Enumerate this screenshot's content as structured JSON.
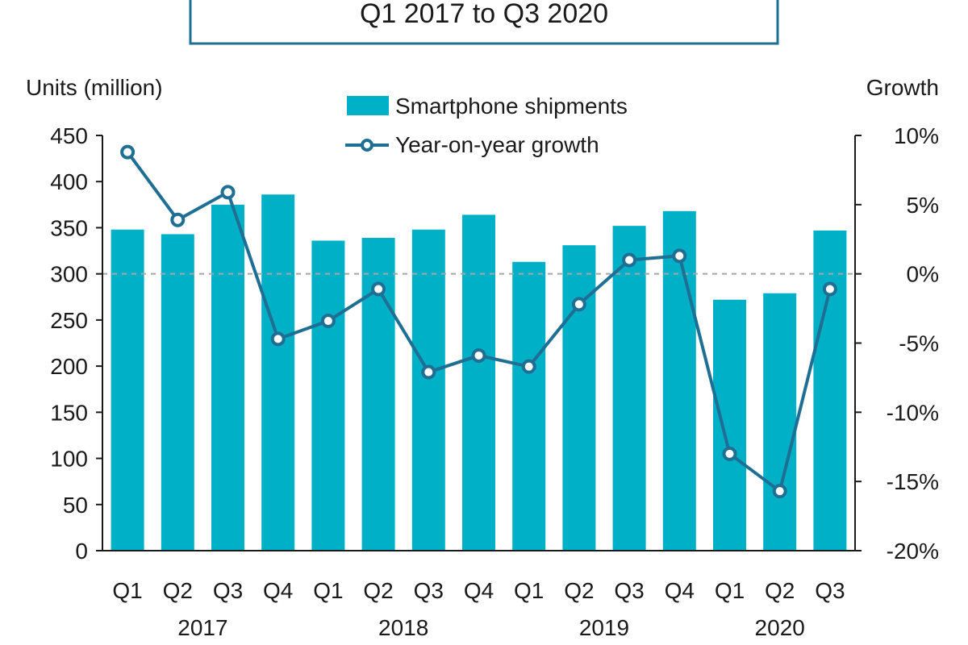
{
  "title": "Q1 2017 to Q3 2020",
  "colors": {
    "bar": "#00b0c6",
    "line": "#1f6f95",
    "marker_fill": "#ffffff"
  },
  "chart_data": {
    "type": "bar",
    "title": "Q1 2017 to Q3 2020",
    "ylabel_left": "Units (million)",
    "ylabel_right": "Growth",
    "ylim_left": [
      0,
      450
    ],
    "ylim_right": [
      -0.2,
      0.1
    ],
    "yticks_left": [
      "0",
      "50",
      "100",
      "150",
      "200",
      "250",
      "300",
      "350",
      "400",
      "450"
    ],
    "yticks_right": [
      "-20%",
      "-15%",
      "-10%",
      "-5%",
      "0%",
      "5%",
      "10%"
    ],
    "categories": [
      "Q1",
      "Q2",
      "Q3",
      "Q4",
      "Q1",
      "Q2",
      "Q3",
      "Q4",
      "Q1",
      "Q2",
      "Q3",
      "Q4",
      "Q1",
      "Q2",
      "Q3"
    ],
    "year_groups": [
      {
        "label": "2017",
        "count": 4
      },
      {
        "label": "2018",
        "count": 4
      },
      {
        "label": "2019",
        "count": 4
      },
      {
        "label": "2020",
        "count": 3
      }
    ],
    "series": [
      {
        "name": "Smartphone shipments",
        "type": "bar",
        "axis": "left",
        "values": [
          348,
          343,
          375,
          386,
          336,
          339,
          348,
          364,
          313,
          331,
          352,
          368,
          272,
          279,
          347
        ]
      },
      {
        "name": "Year-on-year growth",
        "type": "line",
        "axis": "right",
        "values": [
          0.088,
          0.039,
          0.059,
          -0.047,
          -0.034,
          -0.011,
          -0.071,
          -0.059,
          -0.067,
          -0.022,
          0.01,
          0.013,
          -0.13,
          -0.157,
          -0.011
        ]
      }
    ],
    "reference_line": {
      "axis": "right",
      "value": 0,
      "style": "dashed"
    },
    "legend": {
      "placement": "top-center"
    }
  }
}
